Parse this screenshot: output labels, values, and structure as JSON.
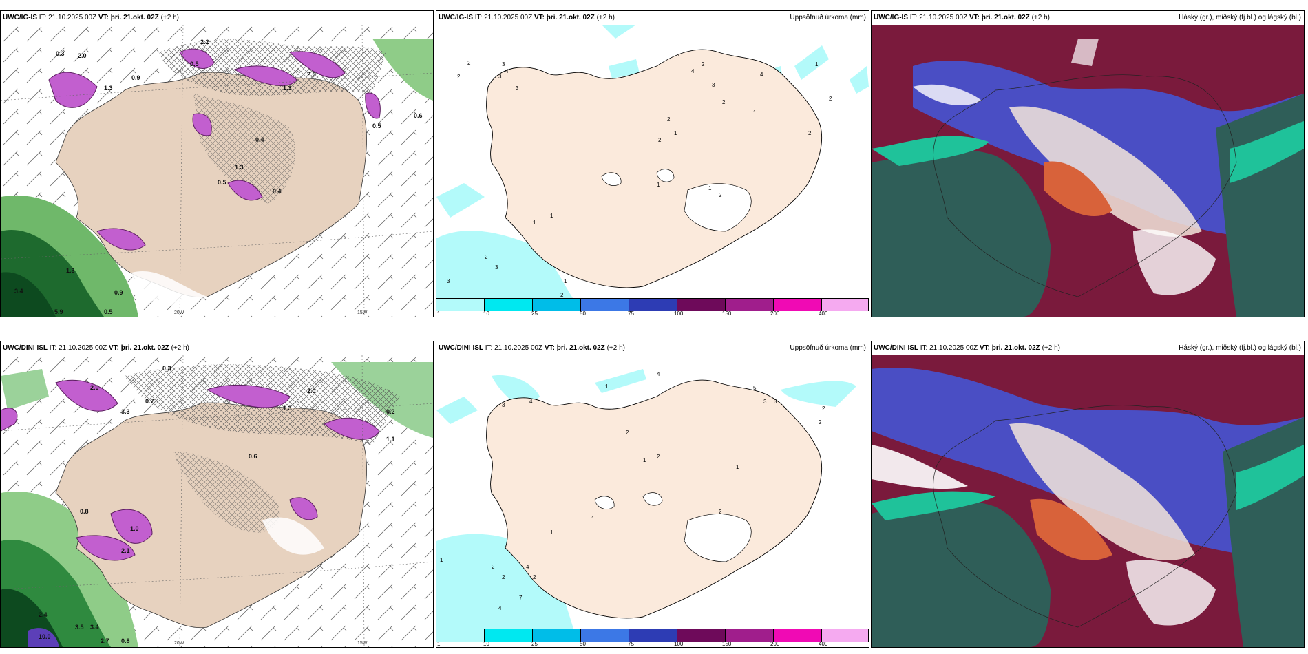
{
  "panels": [
    {
      "model": "UWC/IG-IS",
      "it_label": "IT:",
      "it": "21.10.2025 00Z",
      "vt_label": "VT:",
      "vt": "þri. 21.okt. 02Z",
      "lead": "(+2 h)",
      "title": ""
    },
    {
      "model": "UWC/IG-IS",
      "it_label": "IT:",
      "it": "21.10.2025 00Z",
      "vt_label": "VT:",
      "vt": "þri. 21.okt. 02Z",
      "lead": "(+2 h)",
      "title": "Uppsöfnuð úrkoma (mm)"
    },
    {
      "model": "UWC/IG-IS",
      "it_label": "IT:",
      "it": "21.10.2025 00Z",
      "vt_label": "VT:",
      "vt": "þri. 21.okt. 02Z",
      "lead": "(+2 h)",
      "title": "Háský (gr.), miðský (fj.bl.) og lágský (bl.)"
    },
    {
      "model": "UWC/DINI ISL",
      "it_label": "IT:",
      "it": "21.10.2025 00Z",
      "vt_label": "VT:",
      "vt": "þri. 21.okt. 02Z",
      "lead": "(+2 h)",
      "title": ""
    },
    {
      "model": "UWC/DINI ISL",
      "it_label": "IT:",
      "it": "21.10.2025 00Z",
      "vt_label": "VT:",
      "vt": "þri. 21.okt. 02Z",
      "lead": "(+2 h)",
      "title": "Uppsöfnuð úrkoma (mm)"
    },
    {
      "model": "UWC/DINI ISL",
      "it_label": "IT:",
      "it": "21.10.2025 00Z",
      "vt_label": "VT:",
      "vt": "þri. 21.okt. 02Z",
      "lead": "(+2 h)",
      "title": "Háský (gr.), miðský (fj.bl.) og lágský (bl.)"
    }
  ],
  "grid_labels": {
    "lon_20": "20W",
    "lon_15": "15W",
    "lat_66": "66N",
    "lat_64": "64N"
  },
  "colorbar": {
    "ticks": [
      "1",
      "10",
      "25",
      "50",
      "75",
      "100",
      "150",
      "200",
      "400"
    ],
    "colors": [
      "#b3fafa",
      "#00e8f0",
      "#00bde8",
      "#3c78e6",
      "#2d3cb4",
      "#6e0a5a",
      "#a01e8c",
      "#f00ab4",
      "#f5aaf0"
    ]
  },
  "precip_values_top": [
    "3",
    "2",
    "3",
    "1",
    "4",
    "2",
    "3",
    "2",
    "1",
    "3",
    "2",
    "3",
    "4",
    "4",
    "1",
    "2",
    "1",
    "2",
    "1",
    "1",
    "1",
    "2",
    "1",
    "1",
    "1",
    "2",
    "3",
    "1",
    "2"
  ],
  "precip_values_bottom": [
    "4",
    "1",
    "3",
    "2",
    "1",
    "5",
    "5",
    "3",
    "2",
    "2",
    "1",
    "2",
    "1",
    "2",
    "4",
    "2",
    "2",
    "7",
    "1",
    "4",
    "1",
    "1",
    "2"
  ],
  "precip_left_top": [
    "2.2",
    "2.0",
    "1.3",
    "0.5",
    "0.9",
    "2.0",
    "1.3",
    "0.5",
    "0.4",
    "0.3",
    "3.4",
    "5.9",
    "0.9",
    "0.5",
    "1.3",
    "0.4",
    "0.5",
    "0.6",
    "1.3"
  ],
  "precip_left_bottom": [
    "0.3",
    "2.0",
    "3.3",
    "0.7",
    "2.0",
    "1.3",
    "0.6",
    "0.8",
    "1.0",
    "2.1",
    "2.4",
    "10.0",
    "3.5",
    "3.4",
    "2.7",
    "0.8",
    "0.2",
    "1.1"
  ],
  "cloud_colors": {
    "high": "#7a1a3c",
    "mid": "#4a4ec4",
    "low": "#2f5e58",
    "land": "#f3e6da",
    "ocean_low": "#1f8a6e"
  }
}
